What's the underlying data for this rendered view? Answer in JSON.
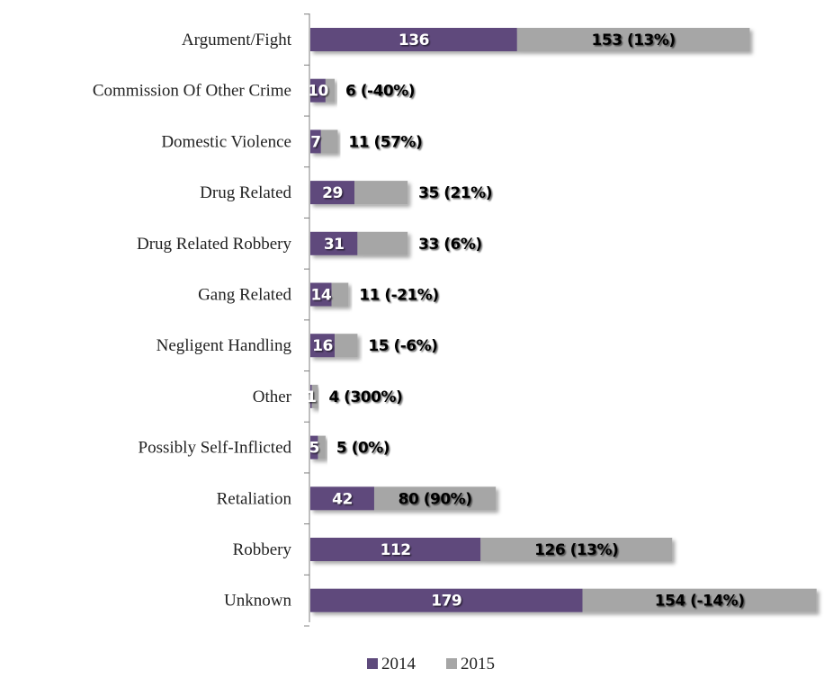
{
  "chart_data": {
    "type": "bar",
    "orientation": "horizontal",
    "stacked": true,
    "title": "",
    "xlabel": "",
    "ylabel": "",
    "categories": [
      "Argument/Fight",
      "Commission Of Other Crime",
      "Domestic Violence",
      "Drug Related",
      "Drug Related Robbery",
      "Gang Related",
      "Negligent Handling",
      "Other",
      "Possibly Self-Inflicted",
      "Retaliation",
      "Robbery",
      "Unknown"
    ],
    "series": [
      {
        "name": "2014",
        "color": "#5e4a7c",
        "values": [
          136,
          10,
          7,
          29,
          31,
          14,
          16,
          1,
          5,
          42,
          112,
          179
        ],
        "labels": [
          "136",
          "10",
          "7",
          "29",
          "31",
          "14",
          "16",
          "1",
          "5",
          "42",
          "112",
          "179"
        ]
      },
      {
        "name": "2015",
        "color": "#a6a6a6",
        "values": [
          153,
          6,
          11,
          35,
          33,
          11,
          15,
          4,
          5,
          80,
          126,
          154
        ],
        "labels": [
          "153 (13%)",
          "6 (-40%)",
          "11 (57%)",
          "35 (21%)",
          "33 (6%)",
          "11 (-21%)",
          "15 (-6%)",
          "4 (300%)",
          "5 (0%)",
          "80 (90%)",
          "126 (13%)",
          "154 (-14%)"
        ]
      }
    ],
    "legend": {
      "position": "bottom",
      "entries": [
        "2014",
        "2015"
      ]
    },
    "grid": false
  }
}
